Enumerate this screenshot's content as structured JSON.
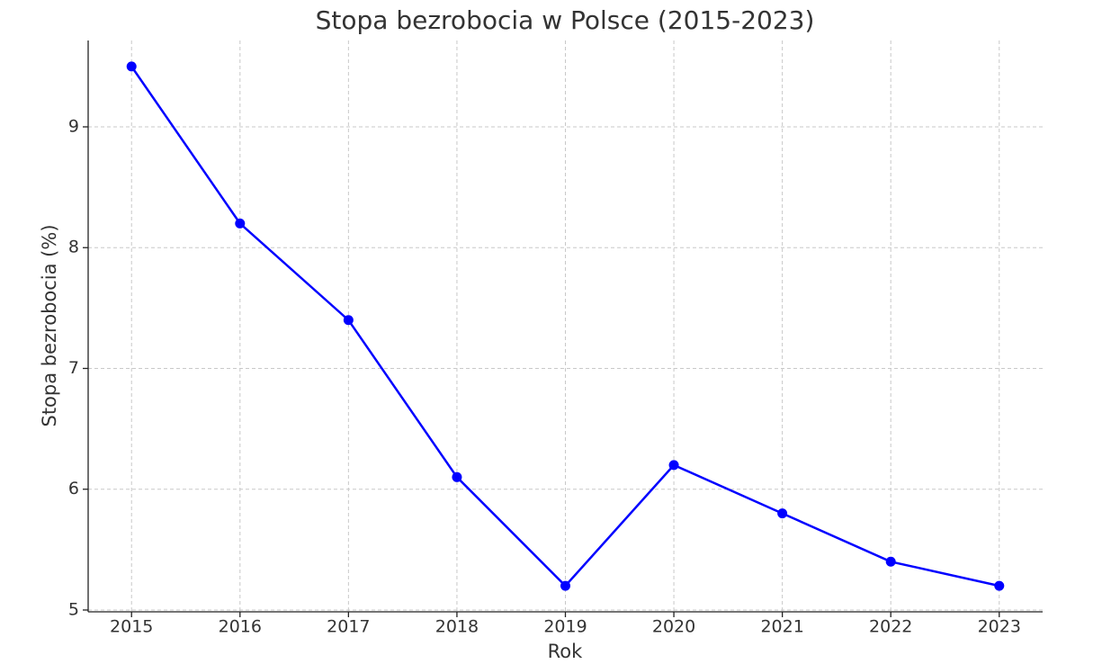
{
  "chart_data": {
    "type": "line",
    "title": "Stopa bezrobocia w Polsce (2015-2023)",
    "x_label": "Rok",
    "y_label": "Stopa bezrobocia (%)",
    "x": [
      2015,
      2016,
      2017,
      2018,
      2019,
      2020,
      2021,
      2022,
      2023
    ],
    "values": [
      9.5,
      8.2,
      7.4,
      6.1,
      5.2,
      6.2,
      5.8,
      5.4,
      5.2
    ],
    "color": "#0000ff",
    "xlim": [
      2014.6,
      2023.4
    ],
    "xticks": [
      2015,
      2016,
      2017,
      2018,
      2019,
      2020,
      2021,
      2022,
      2023
    ],
    "ylim": [
      4.985,
      9.715
    ],
    "yticks": [
      5,
      6,
      7,
      8,
      9
    ],
    "grid": true
  }
}
